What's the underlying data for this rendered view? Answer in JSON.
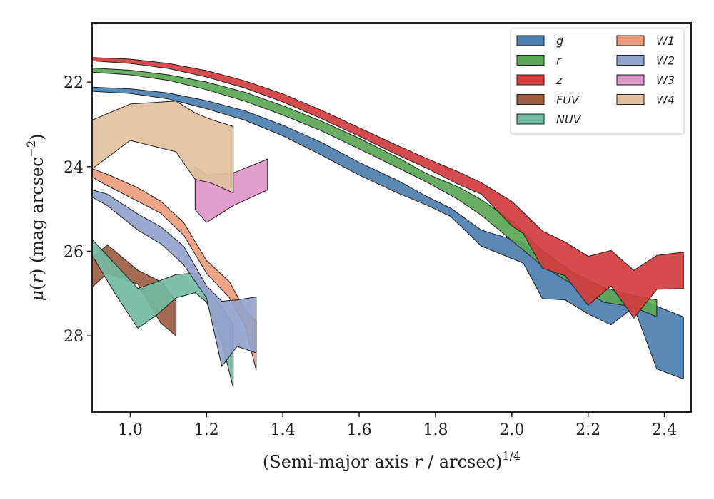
{
  "chart_data": {
    "type": "area",
    "xlabel": "(Semi-major axis r / arcsec)^1/4",
    "ylabel": "μ(r) (mag arcsec^−2)",
    "xlim": [
      0.9,
      2.47
    ],
    "ylim": [
      29.8,
      20.6
    ],
    "y_inverted": true,
    "xticks": [
      1.0,
      1.2,
      1.4,
      1.6,
      1.8,
      2.0,
      2.2,
      2.4
    ],
    "xtick_labels": [
      "1.0",
      "1.2",
      "1.4",
      "1.6",
      "1.8",
      "2.0",
      "2.2",
      "2.4"
    ],
    "yticks": [
      22,
      24,
      26,
      28
    ],
    "ytick_labels": [
      "22",
      "24",
      "26",
      "28"
    ],
    "grid": false,
    "legend_position": "top-right",
    "legend_columns": 2,
    "series": [
      {
        "name": "g",
        "color": "#4c7fb0",
        "x": [
          0.9,
          1.0,
          1.1,
          1.2,
          1.3,
          1.4,
          1.5,
          1.6,
          1.7,
          1.78,
          1.84,
          1.92,
          2.03,
          2.08,
          2.14,
          2.2,
          2.26,
          2.32,
          2.38,
          2.45
        ],
        "low": [
          22.12,
          22.16,
          22.26,
          22.44,
          22.68,
          23.02,
          23.42,
          23.9,
          24.32,
          24.72,
          24.98,
          25.5,
          25.8,
          26.3,
          26.5,
          26.72,
          26.92,
          27.1,
          27.3,
          27.55
        ],
        "high": [
          22.22,
          22.27,
          22.4,
          22.63,
          22.9,
          23.27,
          23.72,
          24.2,
          24.62,
          24.92,
          25.18,
          25.88,
          26.28,
          27.12,
          27.15,
          27.48,
          27.74,
          27.32,
          28.78,
          29.02
        ]
      },
      {
        "name": "r",
        "color": "#5aa755",
        "x": [
          0.9,
          1.0,
          1.1,
          1.2,
          1.3,
          1.4,
          1.5,
          1.6,
          1.7,
          1.78,
          1.86,
          1.92,
          2.0,
          2.08,
          2.16,
          2.24,
          2.32,
          2.38
        ],
        "low": [
          21.67,
          21.72,
          21.83,
          22.0,
          22.24,
          22.56,
          22.92,
          23.33,
          23.78,
          24.18,
          24.48,
          24.78,
          25.28,
          25.98,
          26.5,
          26.85,
          27.05,
          27.15
        ],
        "high": [
          21.77,
          21.83,
          21.96,
          22.18,
          22.45,
          22.78,
          23.15,
          23.58,
          24.02,
          24.38,
          24.78,
          25.15,
          25.75,
          26.35,
          26.78,
          27.2,
          27.32,
          27.55
        ]
      },
      {
        "name": "z",
        "color": "#d23c3f",
        "x": [
          0.9,
          1.0,
          1.1,
          1.2,
          1.3,
          1.4,
          1.5,
          1.6,
          1.7,
          1.78,
          1.86,
          1.92,
          2.0,
          2.03,
          2.08,
          2.14,
          2.2,
          2.26,
          2.32,
          2.38,
          2.45
        ],
        "low": [
          21.42,
          21.46,
          21.56,
          21.73,
          21.97,
          22.28,
          22.66,
          23.08,
          23.5,
          23.82,
          24.12,
          24.38,
          24.82,
          25.08,
          25.52,
          25.78,
          26.12,
          25.98,
          26.45,
          26.1,
          26.02
        ],
        "high": [
          21.5,
          21.56,
          21.68,
          21.88,
          22.14,
          22.47,
          22.86,
          23.28,
          23.72,
          24.05,
          24.42,
          24.65,
          25.4,
          25.58,
          26.4,
          26.58,
          27.28,
          26.82,
          27.58,
          26.9,
          26.88
        ]
      },
      {
        "name": "FUV",
        "color": "#9c5e43",
        "x": [
          0.9,
          0.94,
          1.02,
          1.08,
          1.12
        ],
        "low": [
          26.15,
          25.85,
          26.45,
          26.72,
          27.18
        ],
        "high": [
          26.85,
          26.52,
          26.78,
          27.7,
          28.0
        ]
      },
      {
        "name": "NUV",
        "color": "#72baa2",
        "x": [
          0.9,
          0.96,
          1.02,
          1.07,
          1.12,
          1.17,
          1.2,
          1.24,
          1.27
        ],
        "low": [
          25.72,
          26.3,
          26.88,
          26.72,
          26.55,
          26.52,
          26.9,
          27.3,
          27.72
        ],
        "high": [
          26.1,
          27.0,
          27.82,
          27.5,
          27.1,
          26.98,
          27.2,
          28.15,
          29.22
        ]
      },
      {
        "name": "W1",
        "color": "#ec9d7c",
        "x": [
          0.9,
          0.94,
          1.02,
          1.08,
          1.14,
          1.2,
          1.26,
          1.3,
          1.33
        ],
        "low": [
          24.05,
          24.18,
          24.5,
          24.82,
          25.32,
          26.22,
          26.72,
          27.38,
          27.65
        ],
        "high": [
          24.25,
          24.45,
          24.82,
          25.1,
          25.62,
          26.52,
          27.1,
          27.75,
          28.8
        ]
      },
      {
        "name": "W2",
        "color": "#94a3cb",
        "x": [
          0.9,
          0.94,
          1.02,
          1.08,
          1.14,
          1.2,
          1.24,
          1.28,
          1.33
        ],
        "low": [
          24.55,
          24.65,
          25.12,
          25.42,
          25.88,
          26.82,
          27.18,
          27.15,
          27.08
        ],
        "high": [
          24.72,
          24.92,
          25.5,
          25.82,
          26.32,
          27.1,
          28.72,
          28.25,
          28.4
        ]
      },
      {
        "name": "W3",
        "color": "#dd96c5",
        "x": [
          1.17,
          1.2,
          1.27,
          1.36
        ],
        "low": [
          24.0,
          24.2,
          24.15,
          23.82
        ],
        "high": [
          25.02,
          25.32,
          24.92,
          24.55
        ]
      },
      {
        "name": "W4",
        "color": "#dfc19f",
        "x": [
          0.9,
          1.0,
          1.12,
          1.17,
          1.21,
          1.27
        ],
        "low": [
          22.9,
          22.52,
          22.45,
          22.73,
          22.88,
          23.05
        ],
        "high": [
          24.05,
          23.38,
          23.65,
          24.3,
          24.38,
          24.62
        ]
      }
    ]
  }
}
